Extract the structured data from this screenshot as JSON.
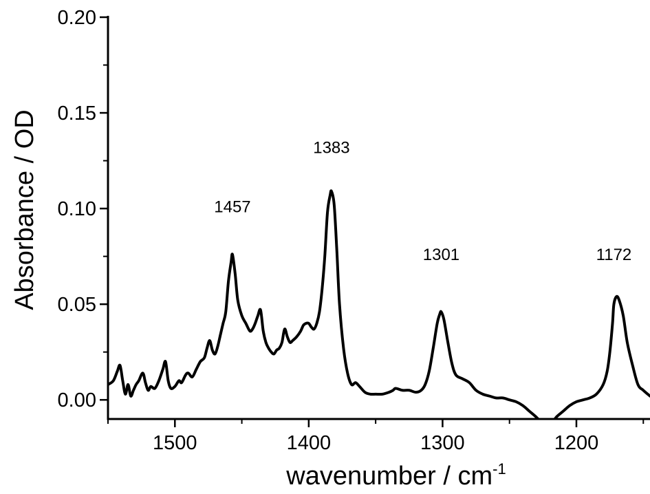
{
  "chart_data": {
    "type": "line",
    "xlabel": "wavenumber / cm",
    "xlabel_superscript": "-1",
    "ylabel": "Absorbance / OD",
    "xlim": [
      1550,
      1145
    ],
    "x_reversed": true,
    "ylim": [
      -0.01,
      0.2
    ],
    "xticks": [
      1500,
      1400,
      1300,
      1200
    ],
    "xtick_labels": [
      "1500",
      "1400",
      "1300",
      "1200"
    ],
    "yticks": [
      0.0,
      0.05,
      0.1,
      0.15,
      0.2
    ],
    "ytick_labels": [
      "0.00",
      "0.05",
      "0.10",
      "0.15",
      "0.20"
    ],
    "grid": false,
    "annotations": [
      {
        "text": "1457",
        "x": 1457,
        "y": 0.098
      },
      {
        "text": "1383",
        "x": 1383,
        "y": 0.129
      },
      {
        "text": "1301",
        "x": 1301,
        "y": 0.073
      },
      {
        "text": "1172",
        "x": 1172,
        "y": 0.073
      }
    ],
    "series": [
      {
        "color": "#000000",
        "x": [
          1550,
          1546,
          1543,
          1541,
          1539,
          1537,
          1535,
          1533,
          1531,
          1529,
          1527,
          1524,
          1522,
          1520,
          1518,
          1515,
          1512,
          1509,
          1507,
          1505,
          1503,
          1500,
          1497,
          1495,
          1492,
          1490,
          1487,
          1484,
          1481,
          1478,
          1476,
          1474,
          1472,
          1470,
          1468,
          1466,
          1464,
          1462,
          1460,
          1458,
          1457,
          1455,
          1453,
          1450,
          1447,
          1444,
          1442,
          1440,
          1438,
          1436,
          1434,
          1432,
          1430,
          1428,
          1426,
          1424,
          1422,
          1420,
          1418,
          1416,
          1414,
          1412,
          1409,
          1406,
          1404,
          1402,
          1400,
          1398,
          1396,
          1394,
          1392,
          1390,
          1388,
          1386,
          1384,
          1383,
          1381,
          1379,
          1377,
          1374,
          1371,
          1368,
          1365,
          1362,
          1358,
          1354,
          1350,
          1345,
          1340,
          1337,
          1335,
          1330,
          1325,
          1320,
          1316,
          1313,
          1310,
          1307,
          1304,
          1302,
          1301,
          1299,
          1296,
          1293,
          1290,
          1285,
          1280,
          1275,
          1270,
          1265,
          1260,
          1255,
          1250,
          1245,
          1240,
          1235,
          1230,
          1226,
          1222,
          1218,
          1215,
          1210,
          1205,
          1200,
          1195,
          1190,
          1185,
          1180,
          1177,
          1175,
          1173,
          1172,
          1170,
          1168,
          1165,
          1162,
          1158,
          1154,
          1150,
          1145
        ],
        "values": [
          0.008,
          0.01,
          0.015,
          0.018,
          0.01,
          0.003,
          0.008,
          0.002,
          0.005,
          0.008,
          0.01,
          0.014,
          0.009,
          0.005,
          0.007,
          0.006,
          0.01,
          0.016,
          0.02,
          0.01,
          0.006,
          0.007,
          0.01,
          0.009,
          0.013,
          0.014,
          0.012,
          0.016,
          0.02,
          0.022,
          0.027,
          0.031,
          0.026,
          0.024,
          0.028,
          0.034,
          0.04,
          0.046,
          0.062,
          0.072,
          0.076,
          0.066,
          0.052,
          0.044,
          0.04,
          0.036,
          0.037,
          0.04,
          0.044,
          0.047,
          0.036,
          0.03,
          0.027,
          0.025,
          0.024,
          0.026,
          0.027,
          0.03,
          0.037,
          0.033,
          0.03,
          0.031,
          0.033,
          0.036,
          0.039,
          0.04,
          0.04,
          0.038,
          0.037,
          0.04,
          0.046,
          0.058,
          0.075,
          0.098,
          0.107,
          0.109,
          0.102,
          0.078,
          0.05,
          0.027,
          0.014,
          0.008,
          0.009,
          0.007,
          0.004,
          0.003,
          0.003,
          0.003,
          0.004,
          0.005,
          0.006,
          0.005,
          0.005,
          0.004,
          0.005,
          0.008,
          0.015,
          0.027,
          0.04,
          0.045,
          0.046,
          0.042,
          0.03,
          0.019,
          0.013,
          0.011,
          0.009,
          0.005,
          0.003,
          0.002,
          0.001,
          0.001,
          0.0,
          -0.001,
          -0.003,
          -0.006,
          -0.009,
          -0.012,
          -0.015,
          -0.012,
          -0.009,
          -0.006,
          -0.003,
          -0.001,
          0.0,
          0.001,
          0.003,
          0.008,
          0.015,
          0.025,
          0.04,
          0.05,
          0.054,
          0.052,
          0.044,
          0.03,
          0.018,
          0.008,
          0.005,
          0.002
        ]
      }
    ]
  }
}
